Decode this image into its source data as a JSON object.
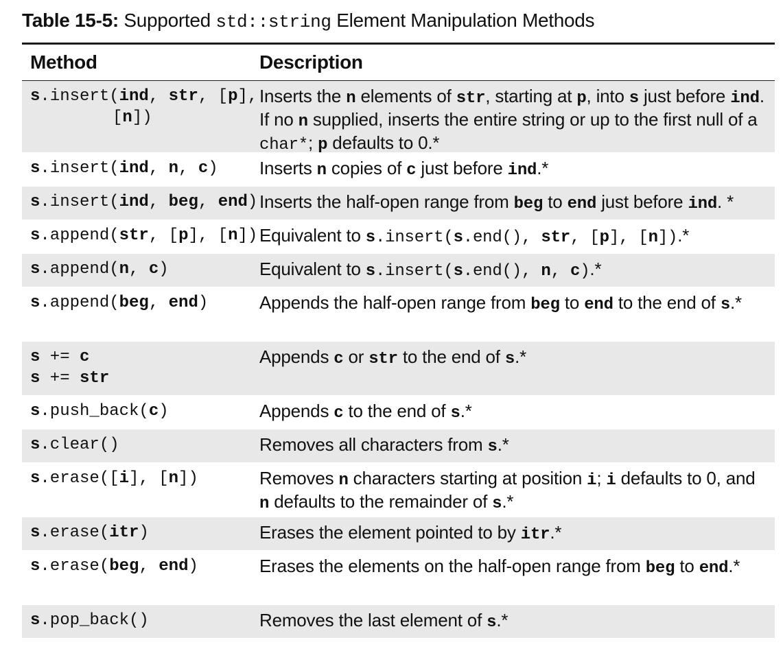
{
  "caption": {
    "label": "Table 15-5:",
    "text_before": " Supported ",
    "code": "std::string",
    "text_after": " Element Manipulation Methods"
  },
  "header": {
    "method": "Method",
    "description": "Description"
  },
  "rows": [
    {
      "method_line1": [
        {
          "t": "s",
          "s": "mb"
        },
        {
          "t": ".insert(",
          "s": "m"
        },
        {
          "t": "ind",
          "s": "mb"
        },
        {
          "t": ", ",
          "s": "m"
        },
        {
          "t": "str",
          "s": "mb"
        },
        {
          "t": ", [",
          "s": "m"
        },
        {
          "t": "p",
          "s": "mb"
        },
        {
          "t": "],",
          "s": "m"
        }
      ],
      "method_line2": [
        {
          "t": "[",
          "s": "m"
        },
        {
          "t": "n",
          "s": "mb"
        },
        {
          "t": "])",
          "s": "m"
        }
      ],
      "description": [
        {
          "t": "Inserts the ",
          "s": ""
        },
        {
          "t": "n",
          "s": "mb"
        },
        {
          "t": " elements of ",
          "s": ""
        },
        {
          "t": "str",
          "s": "mb"
        },
        {
          "t": ", starting at ",
          "s": ""
        },
        {
          "t": "p",
          "s": "mb"
        },
        {
          "t": ", into ",
          "s": ""
        },
        {
          "t": "s",
          "s": "mb"
        },
        {
          "t": " just before ",
          "s": ""
        },
        {
          "t": "ind",
          "s": "mb"
        },
        {
          "t": ". If no ",
          "s": ""
        },
        {
          "t": "n",
          "s": "mb"
        },
        {
          "t": " supplied, inserts the entire string or up to the first null of a ",
          "s": ""
        },
        {
          "t": "char*",
          "s": "m"
        },
        {
          "t": "; ",
          "s": ""
        },
        {
          "t": "p",
          "s": "mb"
        },
        {
          "t": " defaults to 0.*",
          "s": ""
        }
      ],
      "height": 104,
      "shaded": true
    },
    {
      "method_line1": [
        {
          "t": "s",
          "s": "mb"
        },
        {
          "t": ".insert(",
          "s": "m"
        },
        {
          "t": "ind",
          "s": "mb"
        },
        {
          "t": ", ",
          "s": "m"
        },
        {
          "t": "n",
          "s": "mb"
        },
        {
          "t": ", ",
          "s": "m"
        },
        {
          "t": "c",
          "s": "mb"
        },
        {
          "t": ")",
          "s": "m"
        }
      ],
      "description": [
        {
          "t": "Inserts ",
          "s": ""
        },
        {
          "t": "n",
          "s": "mb"
        },
        {
          "t": " copies of ",
          "s": ""
        },
        {
          "t": "c",
          "s": "mb"
        },
        {
          "t": " just before ",
          "s": ""
        },
        {
          "t": "ind",
          "s": "mb"
        },
        {
          "t": ".*",
          "s": ""
        }
      ],
      "height": 48,
      "shaded": false
    },
    {
      "method_line1": [
        {
          "t": "s",
          "s": "mb"
        },
        {
          "t": ".insert(",
          "s": "m"
        },
        {
          "t": "ind",
          "s": "mb"
        },
        {
          "t": ", ",
          "s": "m"
        },
        {
          "t": "beg",
          "s": "mb"
        },
        {
          "t": ", ",
          "s": "m"
        },
        {
          "t": "end",
          "s": "mb"
        },
        {
          "t": ")",
          "s": "m"
        }
      ],
      "description": [
        {
          "t": "Inserts the half-open range from ",
          "s": ""
        },
        {
          "t": "beg",
          "s": "mb"
        },
        {
          "t": " to ",
          "s": ""
        },
        {
          "t": "end",
          "s": "mb"
        },
        {
          "t": " just before ",
          "s": ""
        },
        {
          "t": "ind",
          "s": "mb"
        },
        {
          "t": ". *",
          "s": ""
        }
      ],
      "height": 48,
      "shaded": true
    },
    {
      "method_line1": [
        {
          "t": "s",
          "s": "mb"
        },
        {
          "t": ".append(",
          "s": "m"
        },
        {
          "t": "str",
          "s": "mb"
        },
        {
          "t": ", [",
          "s": "m"
        },
        {
          "t": "p",
          "s": "mb"
        },
        {
          "t": "], [",
          "s": "m"
        },
        {
          "t": "n",
          "s": "mb"
        },
        {
          "t": "])",
          "s": "m"
        }
      ],
      "description": [
        {
          "t": "Equivalent to ",
          "s": ""
        },
        {
          "t": "s",
          "s": "mb"
        },
        {
          "t": ".insert(",
          "s": "m"
        },
        {
          "t": "s",
          "s": "mb"
        },
        {
          "t": ".end(), ",
          "s": "m"
        },
        {
          "t": "str",
          "s": "mb"
        },
        {
          "t": ", [",
          "s": "m"
        },
        {
          "t": "p",
          "s": "mb"
        },
        {
          "t": "], [",
          "s": "m"
        },
        {
          "t": "n",
          "s": "mb"
        },
        {
          "t": "])",
          "s": "m"
        },
        {
          "t": ".*",
          "s": ""
        }
      ],
      "height": 48,
      "shaded": false
    },
    {
      "method_line1": [
        {
          "t": "s",
          "s": "mb"
        },
        {
          "t": ".append(",
          "s": "m"
        },
        {
          "t": "n",
          "s": "mb"
        },
        {
          "t": ", ",
          "s": "m"
        },
        {
          "t": "c",
          "s": "mb"
        },
        {
          "t": ")",
          "s": "m"
        }
      ],
      "description": [
        {
          "t": "Equivalent to ",
          "s": ""
        },
        {
          "t": "s",
          "s": "mb"
        },
        {
          "t": ".insert(",
          "s": "m"
        },
        {
          "t": "s",
          "s": "mb"
        },
        {
          "t": ".end(), ",
          "s": "m"
        },
        {
          "t": "n",
          "s": "mb"
        },
        {
          "t": ", ",
          "s": "m"
        },
        {
          "t": "c",
          "s": "mb"
        },
        {
          "t": ")",
          "s": "m"
        },
        {
          "t": ".*",
          "s": ""
        }
      ],
      "height": 48,
      "shaded": true
    },
    {
      "method_line1": [
        {
          "t": "s",
          "s": "mb"
        },
        {
          "t": ".append(",
          "s": "m"
        },
        {
          "t": "beg",
          "s": "mb"
        },
        {
          "t": ", ",
          "s": "m"
        },
        {
          "t": "end",
          "s": "mb"
        },
        {
          "t": ")",
          "s": "m"
        }
      ],
      "description": [
        {
          "t": "Appends the half-open range from ",
          "s": ""
        },
        {
          "t": "beg",
          "s": "mb"
        },
        {
          "t": " to ",
          "s": ""
        },
        {
          "t": "end",
          "s": "mb"
        },
        {
          "t": " to the end of ",
          "s": ""
        },
        {
          "t": "s",
          "s": "mb"
        },
        {
          "t": ".*",
          "s": ""
        }
      ],
      "height": 78,
      "shaded": false
    },
    {
      "method_line1": [
        {
          "t": "s",
          "s": "mb"
        },
        {
          "t": " += ",
          "s": "m"
        },
        {
          "t": "c",
          "s": "mb"
        }
      ],
      "method_line2": [
        {
          "t": "s",
          "s": "mb"
        },
        {
          "t": " += ",
          "s": "m"
        },
        {
          "t": "str",
          "s": "mb"
        }
      ],
      "line2_indent": false,
      "description": [
        {
          "t": "Appends ",
          "s": ""
        },
        {
          "t": "c",
          "s": "mb"
        },
        {
          "t": " or ",
          "s": ""
        },
        {
          "t": "str",
          "s": "mb"
        },
        {
          "t": " to the end of ",
          "s": ""
        },
        {
          "t": "s",
          "s": "mb"
        },
        {
          "t": ".*",
          "s": ""
        }
      ],
      "height": 78,
      "shaded": true
    },
    {
      "method_line1": [
        {
          "t": "s",
          "s": "mb"
        },
        {
          "t": ".push_back(",
          "s": "m"
        },
        {
          "t": "c",
          "s": "mb"
        },
        {
          "t": ")",
          "s": "m"
        }
      ],
      "description": [
        {
          "t": "Appends ",
          "s": ""
        },
        {
          "t": "c",
          "s": "mb"
        },
        {
          "t": " to the end of ",
          "s": ""
        },
        {
          "t": "s",
          "s": "mb"
        },
        {
          "t": ".*",
          "s": ""
        }
      ],
      "height": 48,
      "shaded": false
    },
    {
      "method_line1": [
        {
          "t": "s",
          "s": "mb"
        },
        {
          "t": ".clear()",
          "s": "m"
        }
      ],
      "description": [
        {
          "t": "Removes all characters from ",
          "s": ""
        },
        {
          "t": "s",
          "s": "mb"
        },
        {
          "t": ".*",
          "s": ""
        }
      ],
      "height": 48,
      "shaded": true
    },
    {
      "method_line1": [
        {
          "t": "s",
          "s": "mb"
        },
        {
          "t": ".erase([",
          "s": "m"
        },
        {
          "t": "i",
          "s": "mb"
        },
        {
          "t": "], [",
          "s": "m"
        },
        {
          "t": "n",
          "s": "mb"
        },
        {
          "t": "])",
          "s": "m"
        }
      ],
      "description": [
        {
          "t": "Removes ",
          "s": ""
        },
        {
          "t": "n",
          "s": "mb"
        },
        {
          "t": " characters starting at position ",
          "s": ""
        },
        {
          "t": "i",
          "s": "mb"
        },
        {
          "t": "; ",
          "s": ""
        },
        {
          "t": "i",
          "s": "mb"
        },
        {
          "t": " defaults to 0, and ",
          "s": ""
        },
        {
          "t": "n",
          "s": "mb"
        },
        {
          "t": " defaults to the remainder of ",
          "s": ""
        },
        {
          "t": "s",
          "s": "mb"
        },
        {
          "t": ".*",
          "s": ""
        }
      ],
      "height": 78,
      "shaded": false
    },
    {
      "method_line1": [
        {
          "t": "s",
          "s": "mb"
        },
        {
          "t": ".erase(",
          "s": "m"
        },
        {
          "t": "itr",
          "s": "mb"
        },
        {
          "t": ")",
          "s": "m"
        }
      ],
      "description": [
        {
          "t": "Erases the element pointed to by ",
          "s": ""
        },
        {
          "t": "itr",
          "s": "mb"
        },
        {
          "t": ".*",
          "s": ""
        }
      ],
      "height": 48,
      "shaded": true
    },
    {
      "method_line1": [
        {
          "t": "s",
          "s": "mb"
        },
        {
          "t": ".erase(",
          "s": "m"
        },
        {
          "t": "beg",
          "s": "mb"
        },
        {
          "t": ", ",
          "s": "m"
        },
        {
          "t": "end",
          "s": "mb"
        },
        {
          "t": ")",
          "s": "m"
        }
      ],
      "description": [
        {
          "t": "Erases the elements on the half-open range from ",
          "s": ""
        },
        {
          "t": "beg",
          "s": "mb"
        },
        {
          "t": " to ",
          "s": ""
        },
        {
          "t": "end",
          "s": "mb"
        },
        {
          "t": ".*",
          "s": ""
        }
      ],
      "height": 78,
      "shaded": false
    },
    {
      "method_line1": [
        {
          "t": "s",
          "s": "mb"
        },
        {
          "t": ".pop_back()",
          "s": "m"
        }
      ],
      "description": [
        {
          "t": "Removes the last element of ",
          "s": ""
        },
        {
          "t": "s",
          "s": "mb"
        },
        {
          "t": ".*",
          "s": ""
        }
      ],
      "height": 48,
      "shaded": true
    }
  ],
  "colors": {
    "shade": "#e8e8e8",
    "rule": "#1a1a1a",
    "text": "#111111"
  }
}
